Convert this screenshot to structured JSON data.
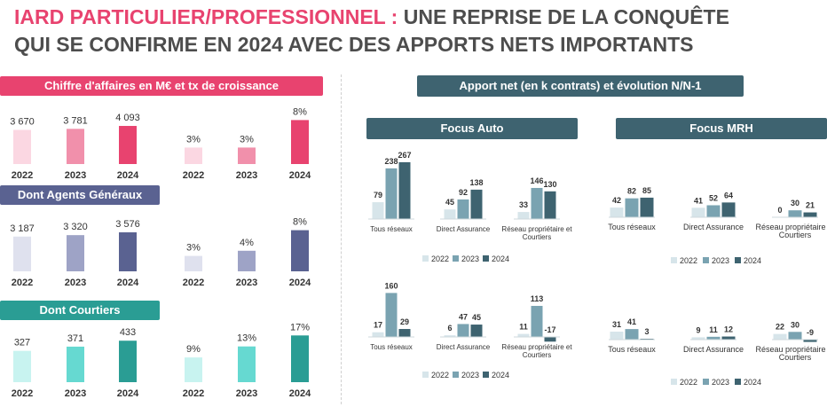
{
  "title": {
    "accent": "IARD PARTICULIER/PROFESSIONNEL :",
    "rest_line1": " UNE REPRISE DE LA CONQUÊTE",
    "line2": "QUI SE CONFIRME EN 2024 AVEC DES APPORTS NETS IMPORTANTS"
  },
  "colors": {
    "pink": "#e8436f",
    "pink_mid": "#f190ab",
    "pink_light": "#fbd7e2",
    "navy": "#5a6291",
    "navy_mid": "#9ea3c6",
    "navy_light": "#dfe1ee",
    "teal": "#2a9d94",
    "teal_mid": "#66d9d1",
    "teal_light": "#c8f3f0",
    "slate": "#3e6370",
    "slate_mid": "#7aa3b1",
    "slate_light": "#d7e5ea"
  },
  "left": {
    "ca_banner": "Chiffre d'affaires en M€ et tx de croissance",
    "ag_banner": "Dont Agents Généraux",
    "ct_banner": "Dont Courtiers"
  },
  "right": {
    "banner": "Apport net (en k contrats) et évolution N/N-1",
    "auto_banner": "Focus Auto",
    "mrh_banner": "Focus MRH"
  },
  "chart_data": [
    {
      "type": "bar",
      "panel": "ca-amount",
      "categories": [
        "2022",
        "2023",
        "2024"
      ],
      "values": [
        3670,
        3781,
        4093
      ],
      "labels": [
        "3 670",
        "3 781",
        "4 093"
      ]
    },
    {
      "type": "bar",
      "panel": "ca-growth",
      "categories": [
        "2022",
        "2023",
        "2024"
      ],
      "values": [
        3,
        3,
        8
      ],
      "labels": [
        "3%",
        "3%",
        "8%"
      ]
    },
    {
      "type": "bar",
      "panel": "ag-amount",
      "categories": [
        "2022",
        "2023",
        "2024"
      ],
      "values": [
        3187,
        3320,
        3576
      ],
      "labels": [
        "3 187",
        "3 320",
        "3 576"
      ]
    },
    {
      "type": "bar",
      "panel": "ag-growth",
      "categories": [
        "2022",
        "2023",
        "2024"
      ],
      "values": [
        3,
        4,
        8
      ],
      "labels": [
        "3%",
        "4%",
        "8%"
      ]
    },
    {
      "type": "bar",
      "panel": "ct-amount",
      "categories": [
        "2022",
        "2023",
        "2024"
      ],
      "values": [
        327,
        371,
        433
      ],
      "labels": [
        "327",
        "371",
        "433"
      ]
    },
    {
      "type": "bar",
      "panel": "ct-growth",
      "categories": [
        "2022",
        "2023",
        "2024"
      ],
      "values": [
        9,
        13,
        17
      ],
      "labels": [
        "9%",
        "13%",
        "17%"
      ]
    },
    {
      "type": "bar",
      "panel": "auto-apport",
      "categories": [
        "Tous réseaux",
        "Direct Assurance",
        "Réseau propriétaire et Courtiers"
      ],
      "series": [
        {
          "name": "2022",
          "values": [
            79,
            45,
            33
          ]
        },
        {
          "name": "2023",
          "values": [
            238,
            92,
            146
          ]
        },
        {
          "name": "2024",
          "values": [
            267,
            138,
            130
          ]
        }
      ]
    },
    {
      "type": "bar",
      "panel": "auto-evolution",
      "categories": [
        "Tous réseaux",
        "Direct Assurance",
        "Réseau propriétaire et Courtiers"
      ],
      "series": [
        {
          "name": "2022",
          "values": [
            17,
            6,
            11
          ]
        },
        {
          "name": "2023",
          "values": [
            160,
            47,
            113
          ]
        },
        {
          "name": "2024",
          "values": [
            29,
            45,
            -17
          ]
        }
      ]
    },
    {
      "type": "bar",
      "panel": "mrh-apport",
      "categories": [
        "Tous réseaux",
        "Direct Assurance",
        "Réseau propriétaire et Courtiers"
      ],
      "series": [
        {
          "name": "2022",
          "values": [
            42,
            41,
            0
          ]
        },
        {
          "name": "2023",
          "values": [
            82,
            52,
            30
          ]
        },
        {
          "name": "2024",
          "values": [
            85,
            64,
            21
          ]
        }
      ]
    },
    {
      "type": "bar",
      "panel": "mrh-evolution",
      "categories": [
        "Tous réseaux",
        "Direct Assurance",
        "Réseau propriétaire et Courtiers"
      ],
      "series": [
        {
          "name": "2022",
          "values": [
            31,
            9,
            22
          ]
        },
        {
          "name": "2023",
          "values": [
            41,
            11,
            30
          ]
        },
        {
          "name": "2024",
          "values": [
            3,
            12,
            -9
          ]
        }
      ]
    }
  ]
}
